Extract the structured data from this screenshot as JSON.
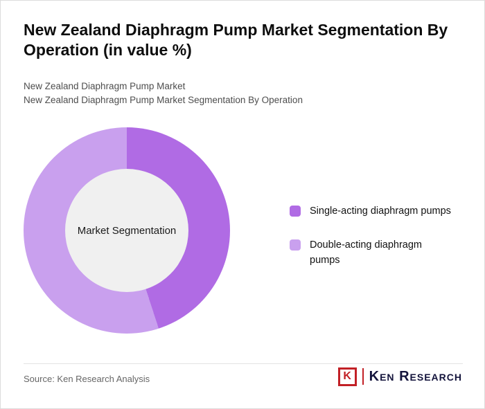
{
  "page": {
    "title": "New Zealand Diaphragm Pump Market Segmentation By Operation (in value %)",
    "subtitle1": "New Zealand Diaphragm Pump Market",
    "subtitle2": "New Zealand Diaphragm Pump Market Segmentation By Operation",
    "source": "Source: Ken Research Analysis",
    "logo": {
      "icon_letter": "K",
      "text": "Ken Research",
      "red": "#c22026",
      "navy": "#14143c"
    }
  },
  "chart_data": {
    "type": "pie",
    "donut": true,
    "title": "New Zealand Diaphragm Pump Market Segmentation By Operation (in value %)",
    "center_label": "Market Segmentation",
    "units": "%",
    "value_labels_shown": false,
    "legend_position": "right",
    "hole_color": "#f0f0f0",
    "series": [
      {
        "name": "Single-acting diaphragm pumps",
        "value": 45,
        "color": "#b06be4"
      },
      {
        "name": "Double-acting diaphragm pumps",
        "value": 55,
        "color": "#c9a0ee"
      }
    ]
  }
}
